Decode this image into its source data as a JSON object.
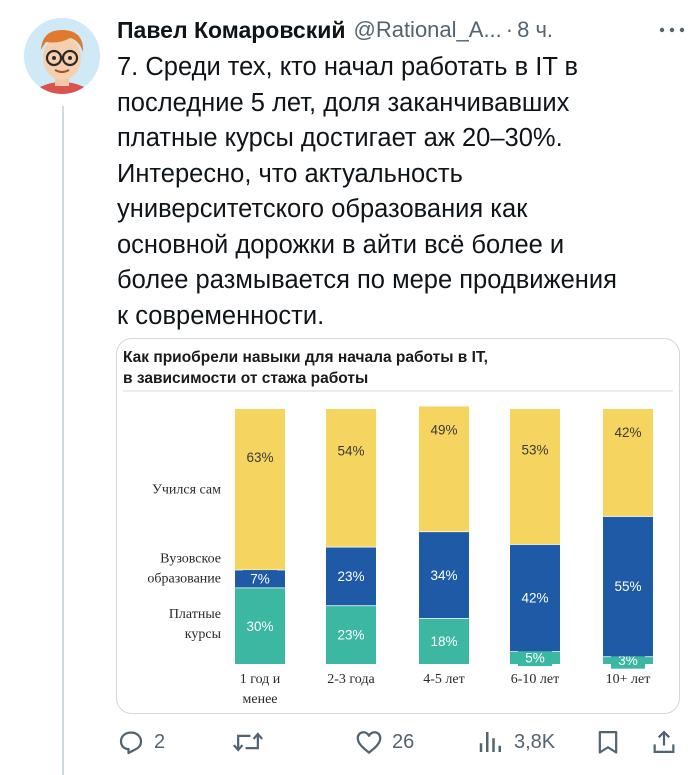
{
  "tweet": {
    "author_name": "Павел Комаровский",
    "author_handle": "@Rational_A...",
    "separator": "·",
    "time": "8 ч.",
    "text": "7. Среди тех, кто начал работать в IT в\nпоследние 5 лет, доля заканчивавших\nплатные курсы достигает аж 20–30%.\nИнтересно, что актуальность\nуниверситетского образования как\nосновной дорожки в айти всё более и\nболее размывается по мере продвижения\nк современности."
  },
  "icons": {
    "avatar": "cartoon-avatar-with-glasses",
    "more": "more-dots-icon",
    "reply": "reply-icon",
    "retweet": "retweet-icon",
    "like": "heart-icon",
    "views": "views-bar-icon",
    "bookmark": "bookmark-icon",
    "share": "share-icon"
  },
  "actions": {
    "replies": "2",
    "retweets": "",
    "likes": "26",
    "views": "3,8K"
  },
  "colors": {
    "self_taught": "#f5d55f",
    "university": "#1f5aa6",
    "paid_courses": "#3cb8a2",
    "text_muted": "#536471"
  },
  "chart_data": {
    "type": "bar",
    "stacked": true,
    "title": "Как приобрели навыки для начала работы в IT,\nв зависимости от стажа работы",
    "categories": [
      "1 год и менее",
      "2-3 года",
      "4-5 лет",
      "6-10 лет",
      "10+ лет"
    ],
    "category_lines": [
      [
        "1 год и",
        "менее"
      ],
      [
        "2-3 года"
      ],
      [
        "4-5 лет"
      ],
      [
        "6-10 лет"
      ],
      [
        "10+ лет"
      ]
    ],
    "series": [
      {
        "name": "Платные курсы",
        "name_lines": [
          "Платные",
          "курсы"
        ],
        "color": "#3cb8a2",
        "values": [
          30,
          23,
          18,
          5,
          3
        ],
        "labels": [
          "30%",
          "23%",
          "18%",
          "5%",
          "3%"
        ]
      },
      {
        "name": "Вузовское образование",
        "name_lines": [
          "Вузовское",
          "образование"
        ],
        "color": "#1f5aa6",
        "values": [
          7,
          23,
          34,
          42,
          55
        ],
        "labels": [
          "7%",
          "23%",
          "34%",
          "42%",
          "55%"
        ]
      },
      {
        "name": "Учился сам",
        "name_lines": [
          "Учился сам"
        ],
        "color": "#f5d55f",
        "values": [
          63,
          54,
          49,
          53,
          42
        ],
        "labels": [
          "63%",
          "54%",
          "49%",
          "53%",
          "42%"
        ]
      }
    ],
    "ylim": [
      0,
      100
    ],
    "grid": false,
    "legend": "left"
  }
}
